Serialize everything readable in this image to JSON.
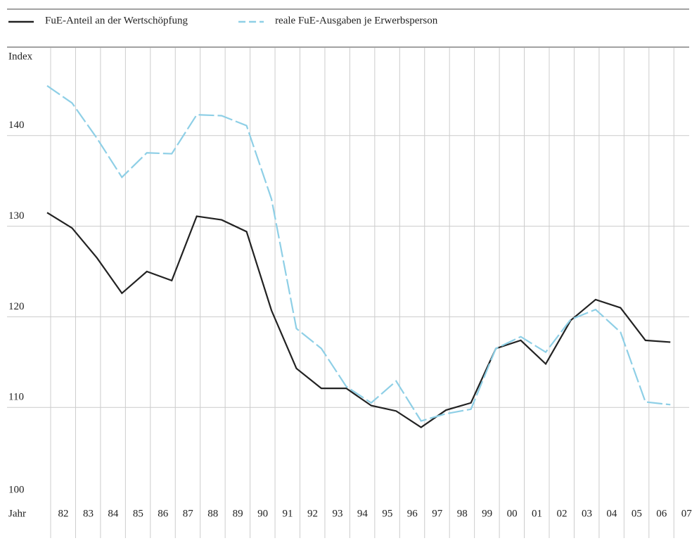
{
  "chart_data": {
    "type": "line",
    "y_label": "Index",
    "x_label": "Jahr",
    "categories": [
      "82",
      "83",
      "84",
      "85",
      "86",
      "87",
      "88",
      "89",
      "90",
      "91",
      "92",
      "93",
      "94",
      "95",
      "96",
      "97",
      "98",
      "99",
      "00",
      "01",
      "02",
      "03",
      "04",
      "05",
      "06",
      "07"
    ],
    "series": [
      {
        "name": "FuE-Anteil an der Wertschöpfung",
        "color": "#222222",
        "dash": false,
        "values": [
          131.5,
          129.8,
          126.5,
          122.6,
          125,
          124,
          131.1,
          130.7,
          129.4,
          120.7,
          114.3,
          112.1,
          112.1,
          110.2,
          109.6,
          107.8,
          109.7,
          110.5,
          116.5,
          117.4,
          114.8,
          119.6,
          121.9,
          121,
          117.4,
          117.2
        ]
      },
      {
        "name": "reale FuE-Ausgaben je Erwerbsperson",
        "color": "#8ecfe6",
        "dash": true,
        "values": [
          145.5,
          143.6,
          139.7,
          135.4,
          138.1,
          138,
          142.3,
          142.2,
          141.1,
          133,
          118.7,
          116.5,
          112.3,
          110.5,
          112.9,
          108.5,
          109.3,
          109.8,
          116.5,
          117.8,
          116.1,
          119.7,
          120.8,
          118.3,
          110.6,
          110.3
        ]
      }
    ],
    "ylim": [
      100,
      150
    ],
    "yticks": [
      100,
      110,
      120,
      130,
      140
    ],
    "grid": true
  }
}
